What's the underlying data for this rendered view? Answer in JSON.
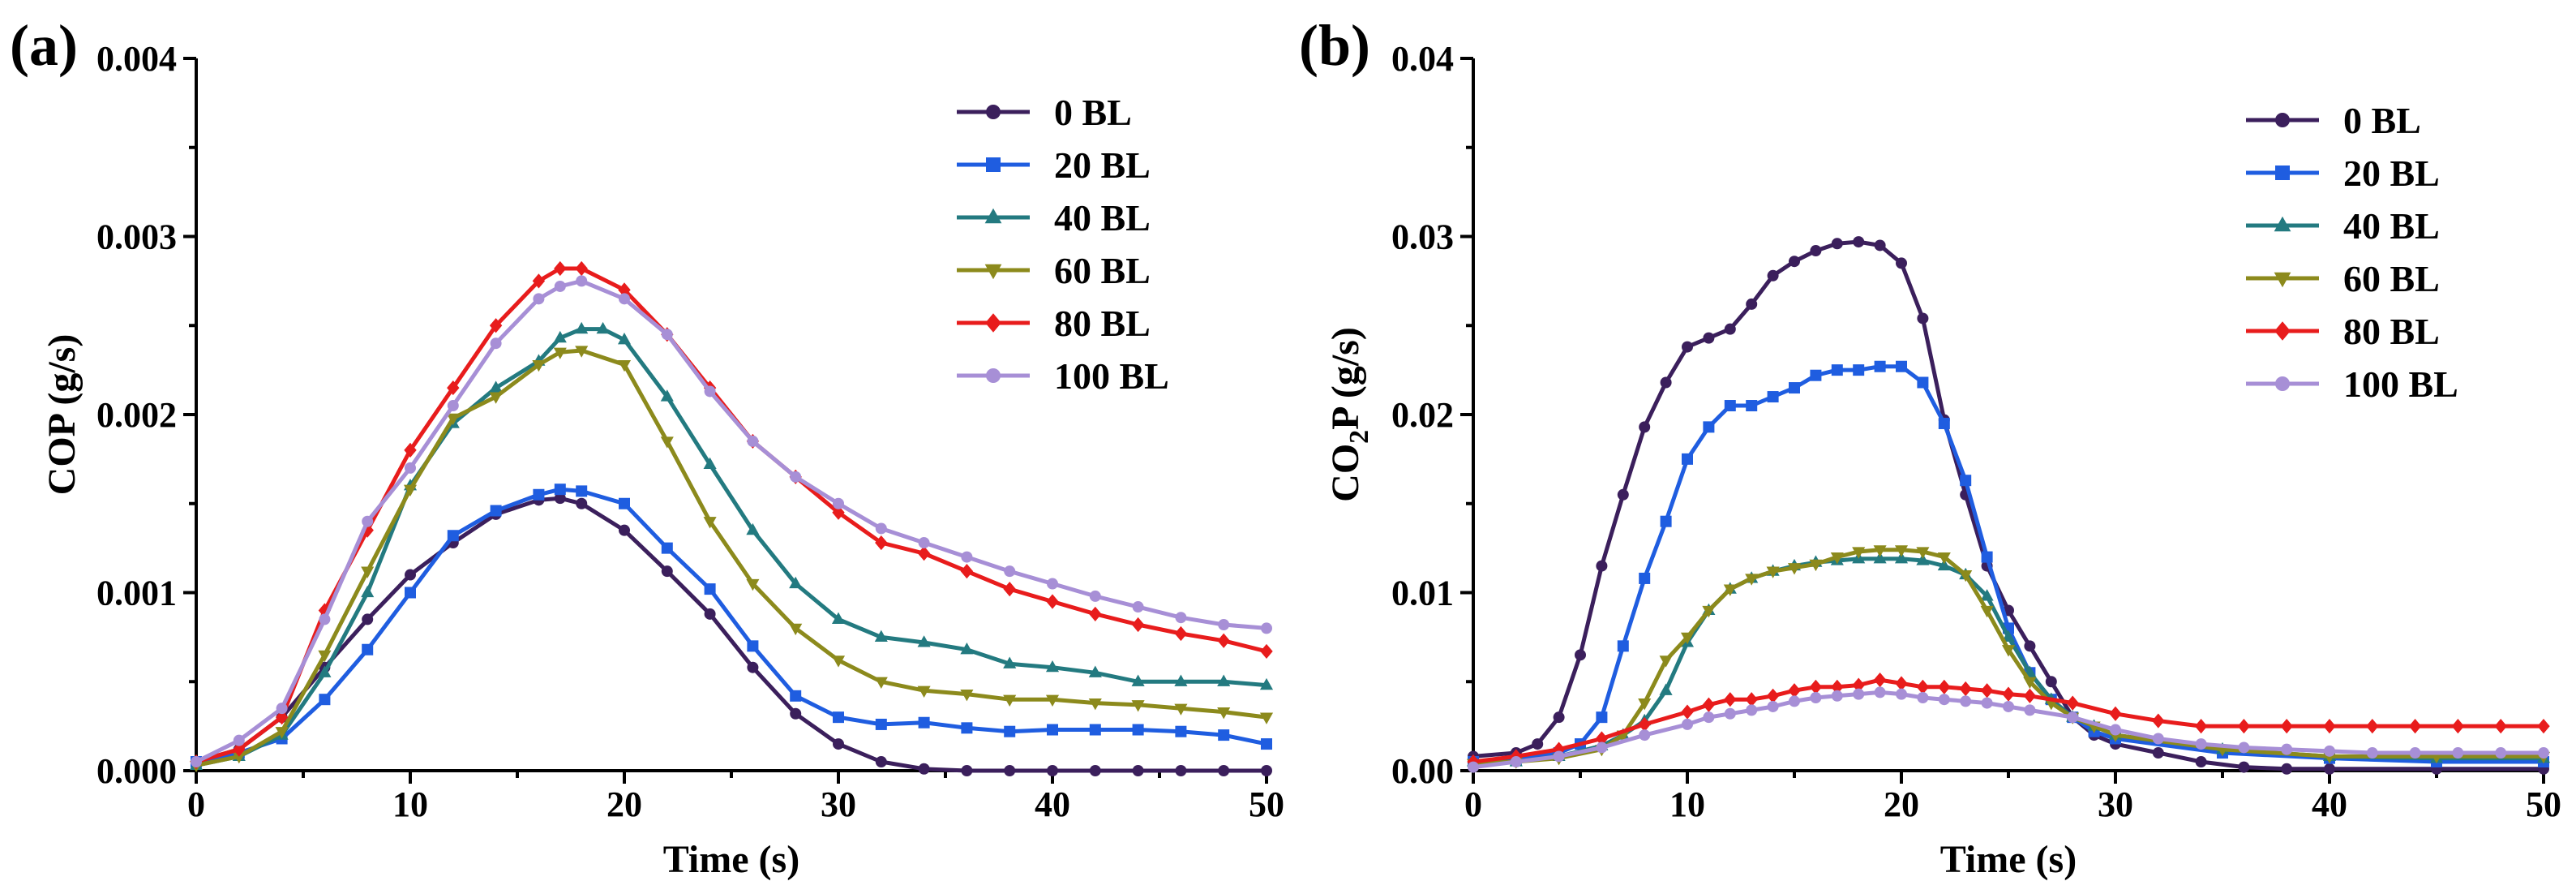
{
  "chart_data": [
    {
      "type": "line",
      "panel_label": "(a)",
      "xlabel": "Time (s)",
      "ylabel": "COP (g/s)",
      "xlim": [
        0,
        50
      ],
      "ylim": [
        0,
        0.004
      ],
      "xticks": [
        "0",
        "10",
        "20",
        "30",
        "40",
        "50"
      ],
      "yticks": [
        "0.000",
        "0.001",
        "0.002",
        "0.003",
        "0.004"
      ],
      "legend_position": "top-right",
      "grid": false,
      "series": [
        {
          "name": "0 BL",
          "color": "#3b1f5c",
          "marker": "circle",
          "x": [
            0,
            2,
            4,
            6,
            8,
            10,
            12,
            14,
            16,
            17,
            18,
            20,
            22,
            24,
            26,
            28,
            30,
            32,
            34,
            36,
            38,
            40,
            42,
            44,
            46,
            48,
            50
          ],
          "y": [
            5e-05,
            0.00012,
            0.0003,
            0.00058,
            0.00085,
            0.0011,
            0.00128,
            0.00144,
            0.00152,
            0.00153,
            0.0015,
            0.00135,
            0.00112,
            0.00088,
            0.00058,
            0.00032,
            0.00015,
            5e-05,
            1e-05,
            0,
            0,
            0,
            0,
            0,
            0,
            0,
            0
          ]
        },
        {
          "name": "20 BL",
          "color": "#1f5de0",
          "marker": "square",
          "x": [
            0,
            2,
            4,
            6,
            8,
            10,
            12,
            14,
            16,
            17,
            18,
            20,
            22,
            24,
            26,
            28,
            30,
            32,
            34,
            36,
            38,
            40,
            42,
            44,
            46,
            48,
            50
          ],
          "y": [
            5e-05,
            0.0001,
            0.00018,
            0.0004,
            0.00068,
            0.001,
            0.00132,
            0.00146,
            0.00155,
            0.00158,
            0.00157,
            0.0015,
            0.00125,
            0.00102,
            0.0007,
            0.00042,
            0.0003,
            0.00026,
            0.00027,
            0.00024,
            0.00022,
            0.00023,
            0.00023,
            0.00023,
            0.00022,
            0.0002,
            0.00015
          ]
        },
        {
          "name": "40 BL",
          "color": "#237a80",
          "marker": "triangle",
          "x": [
            0,
            2,
            4,
            6,
            8,
            10,
            12,
            14,
            16,
            17,
            18,
            19,
            20,
            22,
            24,
            26,
            28,
            30,
            32,
            34,
            36,
            38,
            40,
            42,
            44,
            46,
            48,
            50
          ],
          "y": [
            3e-05,
            8e-05,
            0.0002,
            0.00055,
            0.001,
            0.0016,
            0.00195,
            0.00215,
            0.0023,
            0.00243,
            0.00248,
            0.00248,
            0.00242,
            0.0021,
            0.00172,
            0.00135,
            0.00105,
            0.00085,
            0.00075,
            0.00072,
            0.00068,
            0.0006,
            0.00058,
            0.00055,
            0.0005,
            0.0005,
            0.0005,
            0.00048
          ]
        },
        {
          "name": "60 BL",
          "color": "#8c8a1c",
          "marker": "triangle-down",
          "x": [
            0,
            2,
            4,
            6,
            8,
            10,
            12,
            14,
            16,
            17,
            18,
            20,
            22,
            24,
            26,
            28,
            30,
            32,
            34,
            36,
            38,
            40,
            42,
            44,
            46,
            48,
            50
          ],
          "y": [
            3e-05,
            8e-05,
            0.00022,
            0.00065,
            0.00112,
            0.00158,
            0.00198,
            0.0021,
            0.00228,
            0.00235,
            0.00236,
            0.00228,
            0.00185,
            0.0014,
            0.00105,
            0.0008,
            0.00062,
            0.0005,
            0.00045,
            0.00043,
            0.0004,
            0.0004,
            0.00038,
            0.00037,
            0.00035,
            0.00033,
            0.0003
          ]
        },
        {
          "name": "80 BL",
          "color": "#e81c1c",
          "marker": "diamond",
          "x": [
            0,
            2,
            4,
            6,
            8,
            10,
            12,
            14,
            16,
            17,
            18,
            20,
            22,
            24,
            26,
            28,
            30,
            32,
            34,
            36,
            38,
            40,
            42,
            44,
            46,
            48,
            50
          ],
          "y": [
            5e-05,
            0.00012,
            0.0003,
            0.0009,
            0.00135,
            0.0018,
            0.00215,
            0.0025,
            0.00275,
            0.00282,
            0.00282,
            0.0027,
            0.00245,
            0.00215,
            0.00185,
            0.00165,
            0.00145,
            0.00128,
            0.00122,
            0.00112,
            0.00102,
            0.00095,
            0.00088,
            0.00082,
            0.00077,
            0.00073,
            0.00067
          ]
        },
        {
          "name": "100 BL",
          "color": "#a78fd6",
          "marker": "circle",
          "x": [
            0,
            2,
            4,
            6,
            8,
            10,
            12,
            14,
            16,
            17,
            18,
            20,
            22,
            24,
            26,
            28,
            30,
            32,
            34,
            36,
            38,
            40,
            42,
            44,
            46,
            48,
            50
          ],
          "y": [
            5e-05,
            0.00017,
            0.00035,
            0.00085,
            0.0014,
            0.0017,
            0.00205,
            0.0024,
            0.00265,
            0.00272,
            0.00275,
            0.00265,
            0.00245,
            0.00213,
            0.00185,
            0.00165,
            0.0015,
            0.00136,
            0.00128,
            0.0012,
            0.00112,
            0.00105,
            0.00098,
            0.00092,
            0.00086,
            0.00082,
            0.0008
          ]
        }
      ]
    },
    {
      "type": "line",
      "panel_label": "(b)",
      "xlabel": "Time (s)",
      "ylabel_main": "CO",
      "ylabel_sub": "2",
      "ylabel_rest": "P (g/s)",
      "xlim": [
        0,
        50
      ],
      "ylim": [
        0,
        0.04
      ],
      "xticks": [
        "0",
        "10",
        "20",
        "30",
        "40",
        "50"
      ],
      "yticks": [
        "0.00",
        "0.01",
        "0.02",
        "0.03",
        "0.04"
      ],
      "legend_position": "top-right",
      "grid": false,
      "series": [
        {
          "name": "0 BL",
          "color": "#3b1f5c",
          "marker": "circle",
          "x": [
            0,
            2,
            3,
            4,
            5,
            6,
            7,
            8,
            9,
            10,
            11,
            12,
            13,
            14,
            15,
            16,
            17,
            18,
            19,
            20,
            21,
            22,
            23,
            24,
            25,
            26,
            27,
            28,
            29,
            30,
            32,
            34,
            36,
            38,
            40,
            45,
            50
          ],
          "y": [
            0.0008,
            0.001,
            0.0015,
            0.003,
            0.0065,
            0.0115,
            0.0155,
            0.0193,
            0.0218,
            0.0238,
            0.0243,
            0.0248,
            0.0262,
            0.0278,
            0.0286,
            0.0292,
            0.0296,
            0.0297,
            0.0295,
            0.0285,
            0.0254,
            0.0197,
            0.0155,
            0.0115,
            0.009,
            0.007,
            0.005,
            0.003,
            0.002,
            0.0015,
            0.001,
            0.0005,
            0.0002,
            0.0001,
            0.0001,
            0.0001,
            0.0001
          ]
        },
        {
          "name": "20 BL",
          "color": "#1f5de0",
          "marker": "square",
          "x": [
            0,
            2,
            4,
            5,
            6,
            7,
            8,
            9,
            10,
            11,
            12,
            13,
            14,
            15,
            16,
            17,
            18,
            19,
            20,
            21,
            22,
            23,
            24,
            25,
            26,
            27,
            28,
            29,
            30,
            35,
            40,
            45,
            50
          ],
          "y": [
            0.0005,
            0.0006,
            0.001,
            0.0015,
            0.003,
            0.007,
            0.0108,
            0.014,
            0.0175,
            0.0193,
            0.0205,
            0.0205,
            0.021,
            0.0215,
            0.0222,
            0.0225,
            0.0225,
            0.0227,
            0.0227,
            0.0218,
            0.0195,
            0.0163,
            0.012,
            0.008,
            0.0055,
            0.004,
            0.003,
            0.0022,
            0.0018,
            0.001,
            0.0007,
            0.0005,
            0.0005
          ]
        },
        {
          "name": "40 BL",
          "color": "#237a80",
          "marker": "triangle",
          "x": [
            0,
            2,
            4,
            6,
            7,
            8,
            9,
            10,
            11,
            12,
            13,
            14,
            15,
            16,
            17,
            18,
            19,
            20,
            21,
            22,
            23,
            24,
            25,
            26,
            27,
            28,
            29,
            30,
            35,
            40,
            45,
            50
          ],
          "y": [
            0.0005,
            0.0005,
            0.0008,
            0.0014,
            0.002,
            0.0028,
            0.0045,
            0.0072,
            0.009,
            0.0102,
            0.0108,
            0.0112,
            0.0115,
            0.0117,
            0.0118,
            0.0119,
            0.0119,
            0.0119,
            0.0118,
            0.0115,
            0.011,
            0.0098,
            0.0075,
            0.0055,
            0.004,
            0.003,
            0.0025,
            0.002,
            0.0012,
            0.0008,
            0.0007,
            0.0007
          ]
        },
        {
          "name": "60 BL",
          "color": "#8c8a1c",
          "marker": "triangle-down",
          "x": [
            0,
            2,
            4,
            6,
            7,
            8,
            9,
            10,
            11,
            12,
            13,
            14,
            15,
            16,
            17,
            18,
            19,
            20,
            21,
            22,
            23,
            24,
            25,
            26,
            27,
            28,
            29,
            30,
            35,
            40,
            45,
            50
          ],
          "y": [
            0.0004,
            0.0005,
            0.0007,
            0.0012,
            0.002,
            0.0038,
            0.0062,
            0.0075,
            0.009,
            0.0102,
            0.0108,
            0.0112,
            0.0114,
            0.0116,
            0.012,
            0.0123,
            0.0124,
            0.0124,
            0.0123,
            0.012,
            0.011,
            0.009,
            0.0068,
            0.005,
            0.0038,
            0.003,
            0.0025,
            0.002,
            0.0012,
            0.0008,
            0.0008,
            0.0008
          ]
        },
        {
          "name": "80 BL",
          "color": "#e81c1c",
          "marker": "diamond",
          "x": [
            0,
            2,
            4,
            6,
            8,
            10,
            11,
            12,
            13,
            14,
            15,
            16,
            17,
            18,
            19,
            20,
            21,
            22,
            23,
            24,
            25,
            26,
            28,
            30,
            32,
            34,
            36,
            38,
            40,
            42,
            44,
            46,
            48,
            50
          ],
          "y": [
            0.0005,
            0.0008,
            0.0012,
            0.0018,
            0.0026,
            0.0033,
            0.0037,
            0.004,
            0.004,
            0.0042,
            0.0045,
            0.0047,
            0.0047,
            0.0048,
            0.0051,
            0.0049,
            0.0047,
            0.0047,
            0.0046,
            0.0045,
            0.0043,
            0.0042,
            0.0038,
            0.0032,
            0.0028,
            0.0025,
            0.0025,
            0.0025,
            0.0025,
            0.0025,
            0.0025,
            0.0025,
            0.0025,
            0.0025
          ]
        },
        {
          "name": "100 BL",
          "color": "#a78fd6",
          "marker": "circle",
          "x": [
            0,
            2,
            4,
            6,
            8,
            10,
            11,
            12,
            13,
            14,
            15,
            16,
            17,
            18,
            19,
            20,
            21,
            22,
            23,
            24,
            25,
            26,
            28,
            30,
            32,
            34,
            36,
            38,
            40,
            42,
            44,
            46,
            48,
            50
          ],
          "y": [
            0.0002,
            0.0005,
            0.0008,
            0.0013,
            0.002,
            0.0026,
            0.003,
            0.0032,
            0.0034,
            0.0036,
            0.0039,
            0.0041,
            0.0042,
            0.0043,
            0.0044,
            0.0043,
            0.0041,
            0.004,
            0.0039,
            0.0038,
            0.0036,
            0.0034,
            0.003,
            0.0023,
            0.0018,
            0.0015,
            0.0013,
            0.0012,
            0.0011,
            0.001,
            0.001,
            0.001,
            0.001,
            0.001
          ]
        }
      ]
    }
  ]
}
